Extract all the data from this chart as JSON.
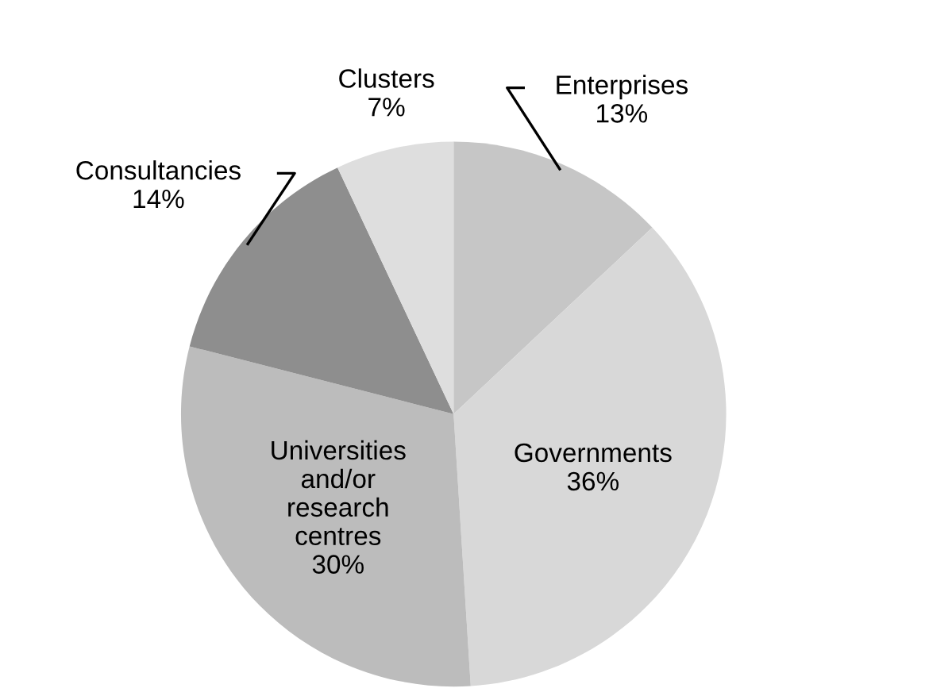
{
  "chart_data": {
    "type": "pie",
    "categories": [
      "Enterprises",
      "Governments",
      "Universities\nand/or\nresearch\ncentres",
      "Consultancies",
      "Clusters"
    ],
    "values": [
      13,
      36,
      30,
      14,
      7
    ],
    "value_labels": [
      "13%",
      "36%",
      "30%",
      "14%",
      "7%"
    ],
    "colors": [
      "#c6c6c6",
      "#d8d8d8",
      "#bcbcbc",
      "#8e8e8e",
      "#dedede"
    ]
  }
}
